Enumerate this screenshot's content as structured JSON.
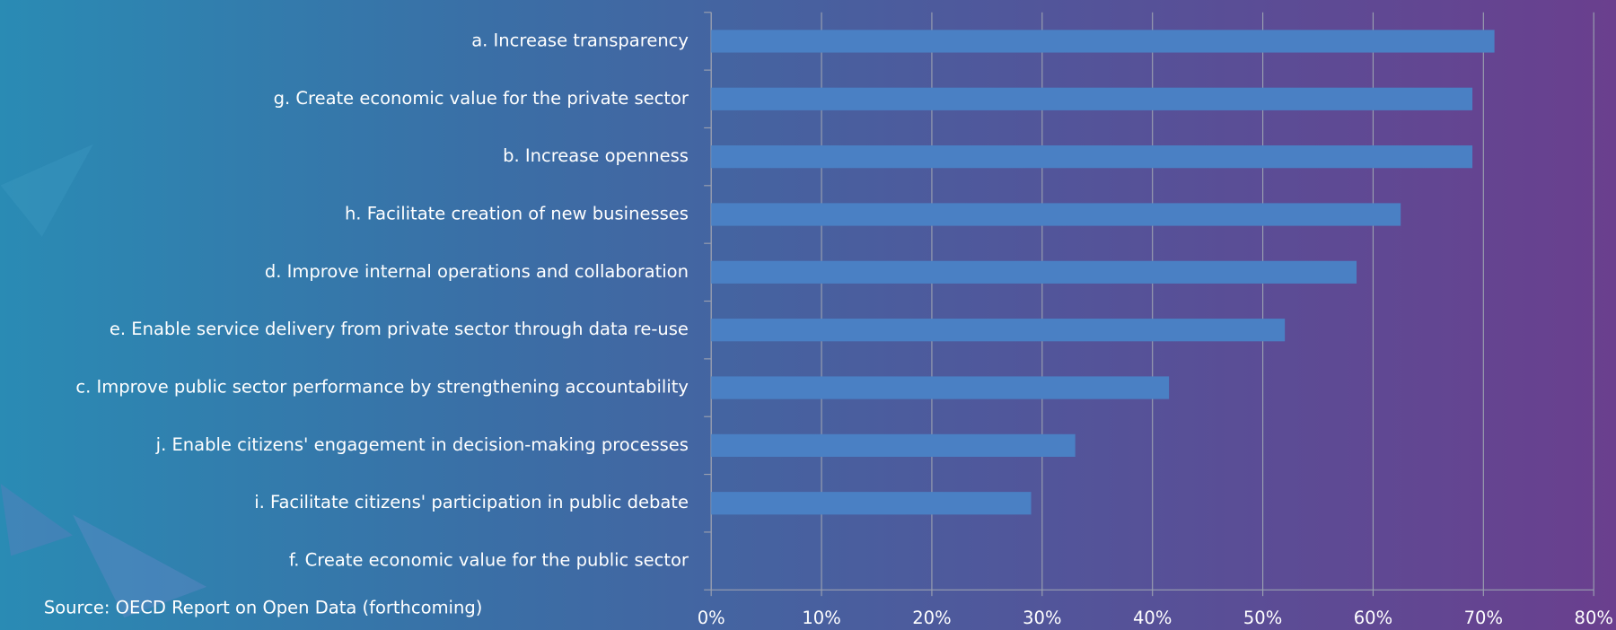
{
  "chart_data": {
    "type": "bar",
    "orientation": "horizontal",
    "source": "Source: OECD Report on Open Data (forthcoming)",
    "categories": [
      "a. Increase transparency",
      "g. Create economic value for the private sector",
      "b. Increase openness",
      "h. Facilitate creation of new businesses",
      "d. Improve internal operations and collaboration",
      "e. Enable service delivery from private sector through data re-use",
      "c. Improve public sector performance by strengthening accountability",
      "j. Enable citizens' engagement in decision-making processes",
      "i. Facilitate citizens' participation in public debate",
      "f. Create economic value for the public sector"
    ],
    "values": [
      71,
      69,
      69,
      62.5,
      58.5,
      52,
      41.5,
      33,
      29,
      0
    ],
    "color": "#4a80c4",
    "xlim": [
      0,
      80
    ],
    "xticks": [
      {
        "value": 0,
        "label": "0%"
      },
      {
        "value": 10,
        "label": "10%"
      },
      {
        "value": 20,
        "label": "20%"
      },
      {
        "value": 30,
        "label": "30%"
      },
      {
        "value": 40,
        "label": "40%"
      },
      {
        "value": 50,
        "label": "50%"
      },
      {
        "value": 60,
        "label": "60%"
      },
      {
        "value": 70,
        "label": "70%"
      },
      {
        "value": 80,
        "label": "80%"
      }
    ],
    "grid": true
  }
}
